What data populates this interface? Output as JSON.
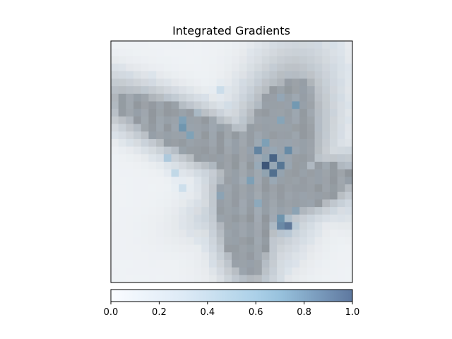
{
  "chart_data": {
    "type": "heatmap",
    "title": "Integrated Gradients",
    "image_grid": {
      "rows": 32,
      "cols": 32
    },
    "colorbar": {
      "range": [
        0.0,
        1.0
      ],
      "ticks": [
        "0.0",
        "0.2",
        "0.4",
        "0.6",
        "0.8",
        "1.0"
      ],
      "cmap_stops": [
        "#f7fbff",
        "#c6dbef",
        "#6baed6",
        "#08306b"
      ],
      "overlay_alpha": 0.55
    },
    "background_image": {
      "description_free_colors": {
        "bg": "#eef1f4",
        "body": "#8f9499",
        "body_dark": "#5f6468"
      }
    },
    "attribution_hotspots": [
      {
        "row": 16,
        "col": 20,
        "value": 1.0
      },
      {
        "row": 15,
        "col": 21,
        "value": 0.95
      },
      {
        "row": 17,
        "col": 21,
        "value": 0.9
      },
      {
        "row": 16,
        "col": 22,
        "value": 0.85
      },
      {
        "row": 14,
        "col": 19,
        "value": 0.8
      },
      {
        "row": 24,
        "col": 23,
        "value": 0.95
      },
      {
        "row": 24,
        "col": 22,
        "value": 0.85
      },
      {
        "row": 23,
        "col": 22,
        "value": 0.7
      },
      {
        "row": 11,
        "col": 9,
        "value": 0.7
      },
      {
        "row": 10,
        "col": 9,
        "value": 0.6
      },
      {
        "row": 12,
        "col": 10,
        "value": 0.6
      },
      {
        "row": 14,
        "col": 23,
        "value": 0.75
      },
      {
        "row": 8,
        "col": 24,
        "value": 0.7
      },
      {
        "row": 10,
        "col": 22,
        "value": 0.55
      },
      {
        "row": 15,
        "col": 7,
        "value": 0.55
      },
      {
        "row": 17,
        "col": 8,
        "value": 0.5
      },
      {
        "row": 19,
        "col": 9,
        "value": 0.45
      },
      {
        "row": 6,
        "col": 14,
        "value": 0.45
      },
      {
        "row": 7,
        "col": 22,
        "value": 0.45
      },
      {
        "row": 20,
        "col": 14,
        "value": 0.5
      },
      {
        "row": 21,
        "col": 19,
        "value": 0.55
      },
      {
        "row": 13,
        "col": 20,
        "value": 0.6
      },
      {
        "row": 18,
        "col": 18,
        "value": 0.6
      },
      {
        "row": 9,
        "col": 11,
        "value": 0.4
      },
      {
        "row": 8,
        "col": 15,
        "value": 0.35
      },
      {
        "row": 22,
        "col": 24,
        "value": 0.5
      }
    ]
  }
}
